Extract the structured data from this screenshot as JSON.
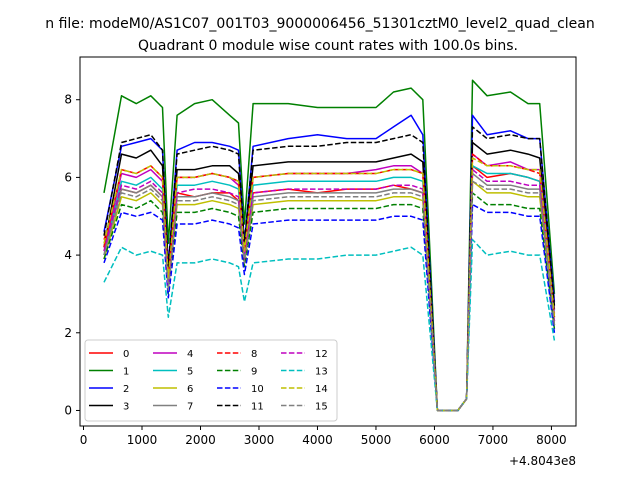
{
  "figure": {
    "suptitle": "n file: modeM0/AS1C07_001T03_9000006456_51301cztM0_level2_quad_clean",
    "title": "Quadrant 0 module wise count rates with 100.0s bins.",
    "offset_text": "+4.8043e8"
  },
  "chart_data": {
    "type": "line",
    "title": "Quadrant 0 module wise count rates with 100.0s bins.",
    "xlim": [
      -60,
      8420
    ],
    "ylim": [
      -0.4,
      9.1
    ],
    "x_offset": 480430000,
    "xticks": [
      0,
      1000,
      2000,
      3000,
      4000,
      5000,
      6000,
      7000,
      8000
    ],
    "xtick_labels": [
      "0",
      "1000",
      "2000",
      "3000",
      "4000",
      "5000",
      "6000",
      "7000",
      "8000"
    ],
    "yticks": [
      0,
      2,
      4,
      6,
      8
    ],
    "ytick_labels": [
      "0",
      "2",
      "4",
      "6",
      "8"
    ],
    "grid": false,
    "legend_location": "lower-left",
    "legend_columns": 4,
    "x": [
      350,
      650,
      900,
      1150,
      1350,
      1450,
      1600,
      1900,
      2200,
      2500,
      2650,
      2750,
      2900,
      3500,
      4000,
      4500,
      5000,
      5300,
      5600,
      5800,
      6050,
      6400,
      6550,
      6650,
      6900,
      7300,
      7600,
      7800,
      8050
    ],
    "series": [
      {
        "name": "0",
        "color": "#ff0000",
        "dash": "solid",
        "values": [
          4.4,
          5.7,
          5.6,
          5.8,
          5.5,
          3.2,
          5.6,
          5.5,
          5.6,
          5.6,
          5.4,
          4.1,
          5.6,
          5.7,
          5.6,
          5.7,
          5.7,
          5.8,
          5.7,
          5.6,
          0.0,
          0.0,
          0.3,
          6.3,
          6.0,
          6.1,
          6.0,
          5.9,
          2.2
        ]
      },
      {
        "name": "1",
        "color": "#008000",
        "dash": "solid",
        "values": [
          5.6,
          8.1,
          7.9,
          8.1,
          7.8,
          4.3,
          7.6,
          7.9,
          8.0,
          7.6,
          7.4,
          4.8,
          7.9,
          7.9,
          7.8,
          7.8,
          7.8,
          8.2,
          8.3,
          8.0,
          0.0,
          0.0,
          0.3,
          8.5,
          8.1,
          8.2,
          7.9,
          7.9,
          3.0
        ]
      },
      {
        "name": "2",
        "color": "#0000ff",
        "dash": "solid",
        "values": [
          4.6,
          6.8,
          6.9,
          7.0,
          6.7,
          3.7,
          6.7,
          6.9,
          6.9,
          6.8,
          6.7,
          4.3,
          6.8,
          7.0,
          7.1,
          7.0,
          7.0,
          7.3,
          7.6,
          7.1,
          0.0,
          0.0,
          0.3,
          7.6,
          7.1,
          7.2,
          7.0,
          7.0,
          2.8
        ]
      },
      {
        "name": "3",
        "color": "#000000",
        "dash": "solid",
        "values": [
          4.2,
          6.6,
          6.5,
          6.7,
          6.3,
          3.5,
          6.2,
          6.2,
          6.3,
          6.3,
          6.1,
          4.2,
          6.3,
          6.4,
          6.4,
          6.4,
          6.4,
          6.5,
          6.6,
          6.4,
          0.0,
          0.0,
          0.3,
          6.9,
          6.6,
          6.7,
          6.6,
          6.5,
          2.6
        ]
      },
      {
        "name": "4",
        "color": "#bf00bf",
        "dash": "solid",
        "values": [
          4.1,
          6.1,
          6.0,
          6.2,
          5.9,
          3.4,
          6.0,
          6.0,
          6.1,
          6.0,
          5.8,
          4.1,
          6.0,
          6.1,
          6.1,
          6.1,
          6.2,
          6.3,
          6.3,
          6.1,
          0.0,
          0.0,
          0.3,
          6.6,
          6.3,
          6.4,
          6.2,
          6.2,
          2.5
        ]
      },
      {
        "name": "5",
        "color": "#00bfbf",
        "dash": "solid",
        "values": [
          4.0,
          5.9,
          5.8,
          6.0,
          5.7,
          3.3,
          5.8,
          5.8,
          5.9,
          5.8,
          5.7,
          4.0,
          5.8,
          5.9,
          5.9,
          5.9,
          5.9,
          6.0,
          6.0,
          5.9,
          0.0,
          0.0,
          0.3,
          6.3,
          6.1,
          6.1,
          6.0,
          5.9,
          2.4
        ]
      },
      {
        "name": "6",
        "color": "#bfbf00",
        "dash": "solid",
        "values": [
          3.9,
          5.5,
          5.4,
          5.6,
          5.3,
          3.1,
          5.3,
          5.3,
          5.4,
          5.3,
          5.2,
          3.8,
          5.3,
          5.4,
          5.4,
          5.4,
          5.4,
          5.5,
          5.5,
          5.4,
          0.0,
          0.0,
          0.3,
          5.9,
          5.6,
          5.6,
          5.5,
          5.5,
          2.2
        ]
      },
      {
        "name": "7",
        "color": "#808080",
        "dash": "solid",
        "values": [
          4.0,
          5.7,
          5.6,
          5.8,
          5.5,
          3.2,
          5.5,
          5.5,
          5.6,
          5.5,
          5.4,
          3.9,
          5.5,
          5.6,
          5.6,
          5.6,
          5.6,
          5.7,
          5.7,
          5.6,
          0.0,
          0.0,
          0.3,
          6.1,
          5.8,
          5.8,
          5.7,
          5.7,
          2.3
        ]
      },
      {
        "name": "8",
        "color": "#ff0000",
        "dash": "dashed",
        "values": [
          4.2,
          6.2,
          6.1,
          6.3,
          6.0,
          3.4,
          6.0,
          6.0,
          6.1,
          6.0,
          5.9,
          4.1,
          6.0,
          6.1,
          6.1,
          6.1,
          6.1,
          6.2,
          6.2,
          6.1,
          0.0,
          0.0,
          0.3,
          6.6,
          6.3,
          6.3,
          6.2,
          6.1,
          2.4
        ]
      },
      {
        "name": "9",
        "color": "#008000",
        "dash": "dashed",
        "values": [
          3.9,
          5.3,
          5.2,
          5.4,
          5.1,
          3.0,
          5.1,
          5.1,
          5.2,
          5.1,
          5.0,
          3.7,
          5.1,
          5.2,
          5.2,
          5.2,
          5.2,
          5.3,
          5.3,
          5.2,
          0.0,
          0.0,
          0.3,
          5.6,
          5.3,
          5.3,
          5.2,
          5.2,
          2.1
        ]
      },
      {
        "name": "10",
        "color": "#0000ff",
        "dash": "dashed",
        "values": [
          3.8,
          5.1,
          5.0,
          5.1,
          4.9,
          2.9,
          4.8,
          4.8,
          4.9,
          4.8,
          4.7,
          3.5,
          4.8,
          4.9,
          4.9,
          4.9,
          4.9,
          5.0,
          5.0,
          4.9,
          0.0,
          0.0,
          0.3,
          5.3,
          5.1,
          5.1,
          5.0,
          5.0,
          2.0
        ]
      },
      {
        "name": "11",
        "color": "#000000",
        "dash": "dashed",
        "values": [
          4.5,
          6.9,
          7.0,
          7.1,
          6.7,
          3.7,
          6.6,
          6.7,
          6.8,
          6.7,
          6.6,
          4.3,
          6.7,
          6.8,
          6.8,
          6.9,
          6.9,
          7.0,
          7.1,
          6.9,
          0.0,
          0.0,
          0.3,
          7.3,
          7.0,
          7.1,
          7.0,
          7.0,
          2.7
        ]
      },
      {
        "name": "12",
        "color": "#bf00bf",
        "dash": "dashed",
        "values": [
          4.1,
          5.8,
          5.7,
          5.9,
          5.6,
          3.2,
          5.6,
          5.7,
          5.7,
          5.6,
          5.5,
          3.9,
          5.6,
          5.7,
          5.7,
          5.7,
          5.7,
          5.8,
          5.8,
          5.7,
          0.0,
          0.0,
          0.3,
          6.2,
          5.9,
          5.9,
          5.8,
          5.8,
          2.3
        ]
      },
      {
        "name": "13",
        "color": "#00bfbf",
        "dash": "dashed",
        "values": [
          3.3,
          4.2,
          4.0,
          4.1,
          4.0,
          2.4,
          3.8,
          3.8,
          3.9,
          3.8,
          3.7,
          2.8,
          3.8,
          3.9,
          3.9,
          4.0,
          4.0,
          4.1,
          4.2,
          4.0,
          0.0,
          0.0,
          0.3,
          4.4,
          4.0,
          4.1,
          4.0,
          4.0,
          1.8
        ]
      },
      {
        "name": "14",
        "color": "#bfbf00",
        "dash": "dashed",
        "values": [
          4.3,
          6.2,
          6.1,
          6.3,
          6.0,
          3.4,
          6.0,
          6.0,
          6.1,
          6.0,
          5.9,
          4.1,
          6.0,
          6.1,
          6.1,
          6.1,
          6.1,
          6.2,
          6.2,
          6.1,
          0.0,
          0.0,
          0.3,
          6.5,
          6.3,
          6.3,
          6.2,
          6.2,
          2.4
        ]
      },
      {
        "name": "15",
        "color": "#808080",
        "dash": "dashed",
        "values": [
          4.0,
          5.6,
          5.5,
          5.7,
          5.4,
          3.1,
          5.4,
          5.4,
          5.5,
          5.4,
          5.3,
          3.8,
          5.4,
          5.5,
          5.5,
          5.5,
          5.5,
          5.6,
          5.6,
          5.5,
          0.0,
          0.0,
          0.3,
          5.9,
          5.7,
          5.7,
          5.6,
          5.6,
          2.2
        ]
      }
    ]
  }
}
